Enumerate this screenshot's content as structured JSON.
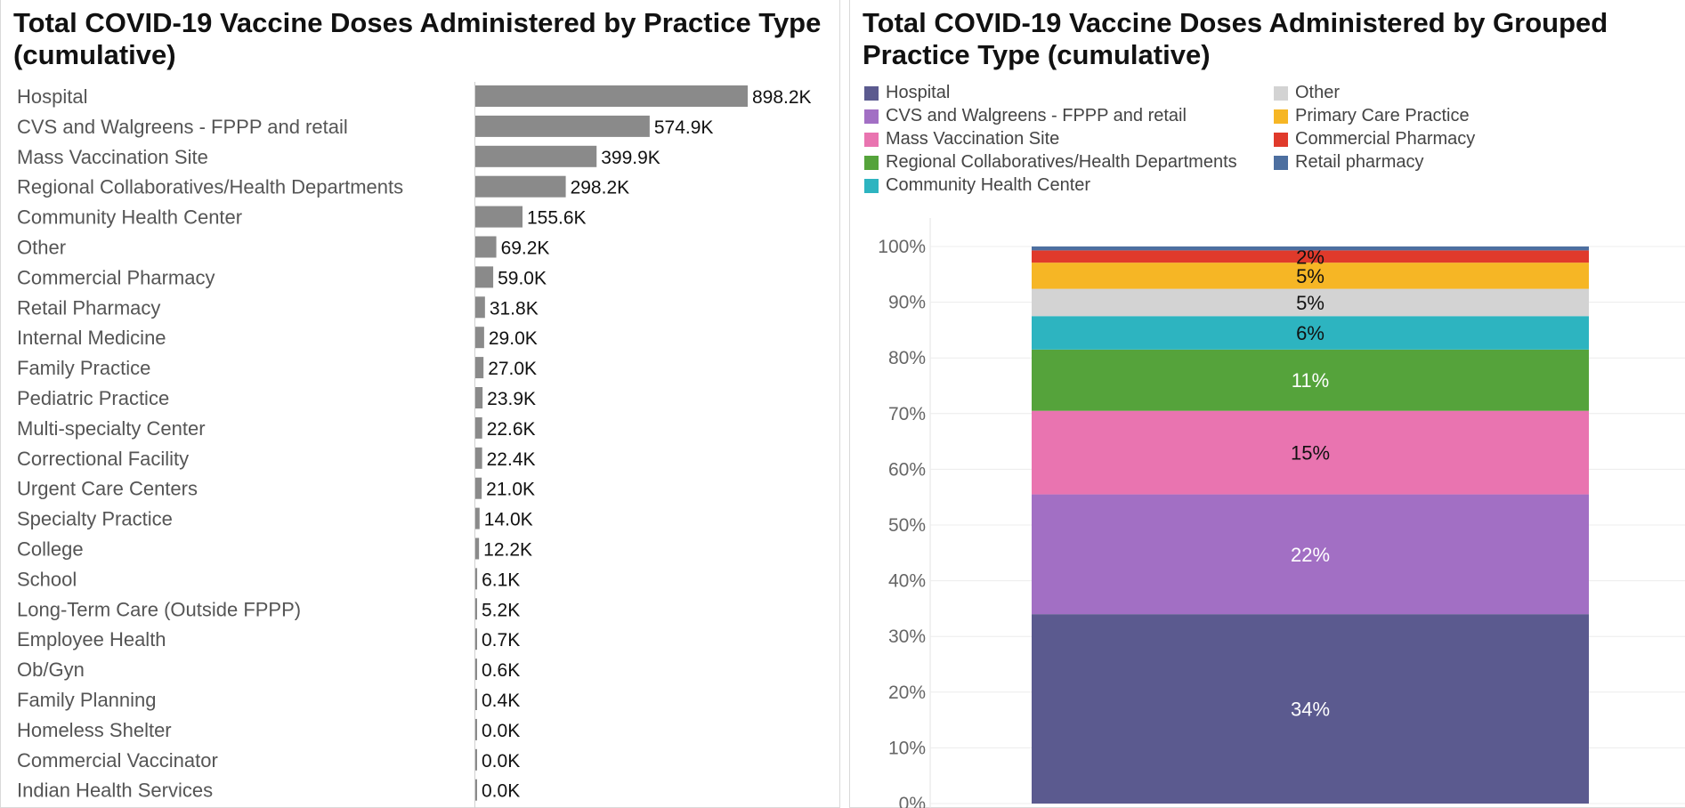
{
  "left": {
    "title": "Total COVID-19 Vaccine Doses Administered by Practice Type (cumulative)"
  },
  "right": {
    "title": "Total COVID-19 Vaccine Doses Administered by Grouped Practice Type (cumulative)"
  },
  "chart_data": [
    {
      "type": "bar",
      "orientation": "horizontal",
      "title": "Total COVID-19 Vaccine Doses Administered by Practice Type (cumulative)",
      "categories": [
        "Hospital",
        "CVS and Walgreens - FPPP and retail",
        "Mass Vaccination Site",
        "Regional Collaboratives/Health Departments",
        "Community Health Center",
        "Other",
        "Commercial Pharmacy",
        "Retail Pharmacy",
        "Internal Medicine",
        "Family Practice",
        "Pediatric Practice",
        "Multi-specialty Center",
        "Correctional Facility",
        "Urgent Care Centers",
        "Specialty Practice",
        "College",
        "School",
        "Long-Term Care (Outside FPPP)",
        "Employee Health",
        "Ob/Gyn",
        "Family Planning",
        "Homeless Shelter",
        "Commercial Vaccinator",
        "Indian Health Services"
      ],
      "values": [
        898200,
        574900,
        399900,
        298200,
        155600,
        69200,
        59000,
        31800,
        29000,
        27000,
        23900,
        22600,
        22400,
        21000,
        14000,
        12200,
        6100,
        5200,
        700,
        600,
        400,
        0,
        0,
        0
      ],
      "data_labels": [
        "898.2K",
        "574.9K",
        "399.9K",
        "298.2K",
        "155.6K",
        "69.2K",
        "59.0K",
        "31.8K",
        "29.0K",
        "27.0K",
        "23.9K",
        "22.6K",
        "22.4K",
        "21.0K",
        "14.0K",
        "12.2K",
        "6.1K",
        "5.2K",
        "0.7K",
        "0.6K",
        "0.4K",
        "0.0K",
        "0.0K",
        "0.0K"
      ],
      "bar_color": "#8a8a8a"
    },
    {
      "type": "bar",
      "stacked": true,
      "normalized": true,
      "title": "Total COVID-19 Vaccine Doses Administered by Grouped Practice Type (cumulative)",
      "ylim": [
        0,
        100
      ],
      "yticks": [
        "0%",
        "10%",
        "20%",
        "30%",
        "40%",
        "50%",
        "60%",
        "70%",
        "80%",
        "90%",
        "100%"
      ],
      "grid": true,
      "legend_position": "top",
      "series": [
        {
          "name": "Hospital",
          "value": 34,
          "label": "34%",
          "color": "#5b5a8f",
          "label_color": "#ffffff"
        },
        {
          "name": "CVS and Walgreens - FPPP and retail",
          "value": 21.5,
          "label": "22%",
          "color": "#a26fc4",
          "label_color": "#ffffff"
        },
        {
          "name": "Mass Vaccination Site",
          "value": 15,
          "label": "15%",
          "color": "#e974b0",
          "label_color": "#111111"
        },
        {
          "name": "Regional Collaboratives/Health Departments",
          "value": 11,
          "label": "11%",
          "color": "#55a33b",
          "label_color": "#ffffff"
        },
        {
          "name": "Community Health Center",
          "value": 6,
          "label": "6%",
          "color": "#2db4c0",
          "label_color": "#111111"
        },
        {
          "name": "Other",
          "value": 4.9,
          "label": "5%",
          "color": "#d3d3d3",
          "label_color": "#111111"
        },
        {
          "name": "Primary Care Practice",
          "value": 4.7,
          "label": "5%",
          "color": "#f6b625",
          "label_color": "#111111"
        },
        {
          "name": "Commercial Pharmacy",
          "value": 2.2,
          "label": "2%",
          "color": "#e03a2b",
          "label_color": "#111111"
        },
        {
          "name": "Retail pharmacy",
          "value": 0.7,
          "label": "",
          "color": "#4d6fa0",
          "label_color": "#111111"
        }
      ],
      "legend": [
        "Hospital",
        "CVS and Walgreens - FPPP and retail",
        "Mass Vaccination Site",
        "Regional Collaboratives/Health Departments",
        "Community Health Center",
        "Other",
        "Primary Care Practice",
        "Commercial Pharmacy",
        "Retail pharmacy"
      ]
    }
  ]
}
